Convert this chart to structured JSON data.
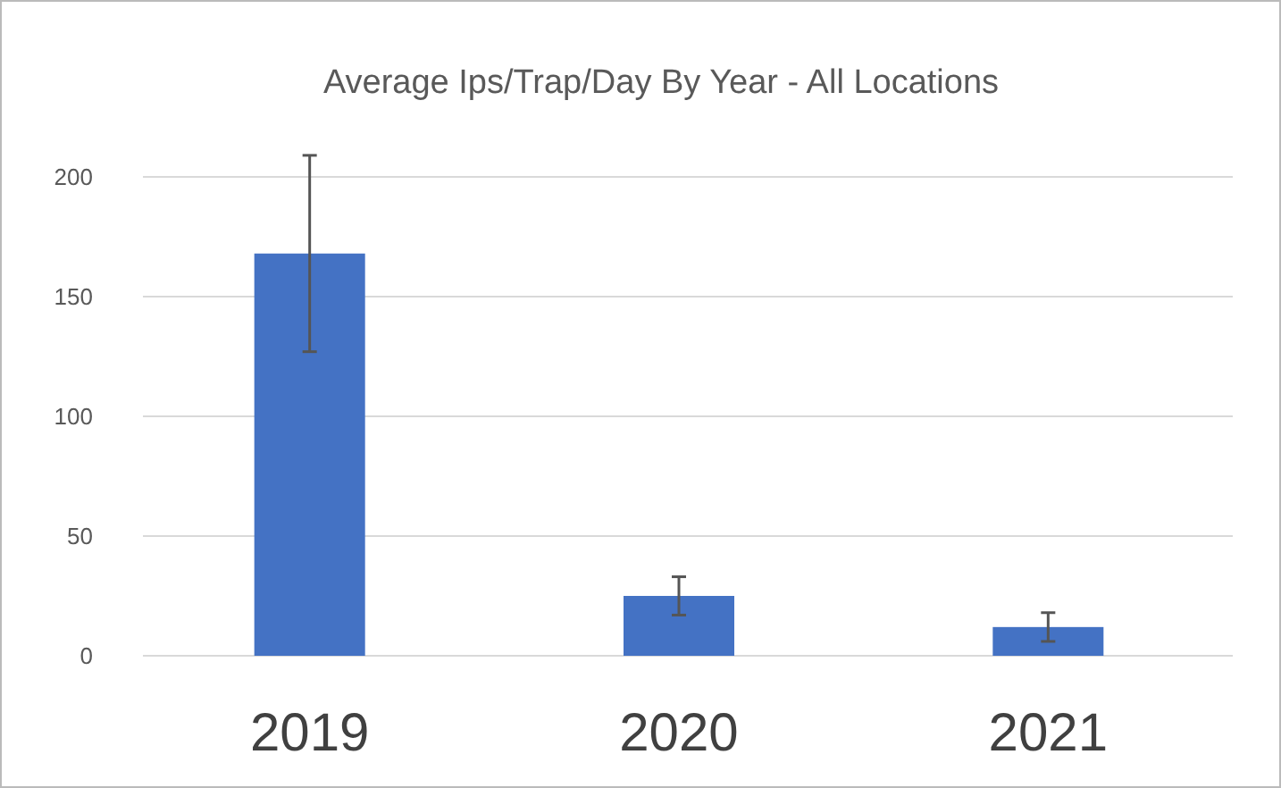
{
  "chart_data": {
    "type": "bar",
    "title": "Average Ips/Trap/Day  By Year - All Locations",
    "categories": [
      "2019",
      "2020",
      "2021"
    ],
    "values": [
      168,
      25,
      12
    ],
    "errors": [
      41,
      8,
      6
    ],
    "color": "#4472c4",
    "ylim": [
      0,
      200
    ],
    "yticks": [
      0,
      50,
      100,
      150,
      200
    ],
    "grid": "y"
  }
}
